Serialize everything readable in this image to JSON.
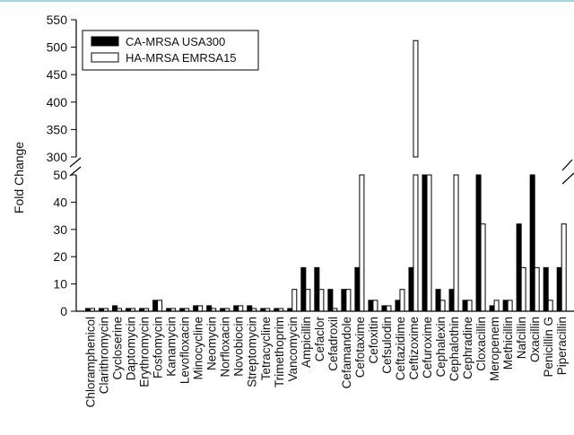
{
  "chart_data": {
    "type": "bar",
    "ylabel": "Fold Change",
    "y_axis_break": true,
    "ylim_lower": [
      0,
      50
    ],
    "ylim_upper": [
      300,
      550
    ],
    "yticks_lower": [
      "0",
      "10",
      "20",
      "30",
      "40",
      "50"
    ],
    "yticks_upper": [
      "300",
      "350",
      "400",
      "450",
      "500",
      "550"
    ],
    "legend_position": "top-left",
    "categories": [
      "Chloramphenicol",
      "Clarithromycin",
      "Cycloserine",
      "Daptomycin",
      "Erythromycin",
      "Fosfomycin",
      "Kanamycin",
      "Levofloxacin",
      "Minocycline",
      "Neomycin",
      "Norfloxacin",
      "Novobiocin",
      "Streptomycin",
      "Tetracycline",
      "Trimethoprim",
      "Vancomycin",
      "Ampicillin",
      "Cefaclor",
      "Cefadroxil",
      "Cefamandole",
      "Cefotaxime",
      "Cefoxitin",
      "Cefsulodin",
      "Ceftazidime",
      "Ceftizoxime",
      "Cefuroxime",
      "Cephalexin",
      "Cephalothin",
      "Cephradine",
      "Cloxacillin",
      "Meropenem",
      "Methicillin",
      "Nafcillin",
      "Oxacillin",
      "Penicillin G",
      "Piperacillin"
    ],
    "series": [
      {
        "name": "CA-MRSA USA300",
        "color": "#000000",
        "values": [
          1,
          1,
          2,
          1,
          1,
          4,
          1,
          1,
          2,
          2,
          1,
          2,
          2,
          1,
          1,
          1,
          16,
          16,
          8,
          8,
          16,
          4,
          2,
          4,
          16,
          50,
          8,
          8,
          4,
          50,
          2,
          4,
          32,
          50,
          16,
          16
        ]
      },
      {
        "name": "HA-MRSA EMRSA15",
        "color": "#ffffff",
        "values": [
          1,
          1,
          1,
          1,
          1,
          4,
          1,
          1,
          2,
          1,
          1,
          2,
          1,
          1,
          1,
          8,
          8,
          8,
          1,
          8,
          50,
          4,
          2,
          8,
          512,
          50,
          4,
          50,
          4,
          32,
          4,
          4,
          16,
          16,
          4,
          32
        ]
      }
    ]
  }
}
